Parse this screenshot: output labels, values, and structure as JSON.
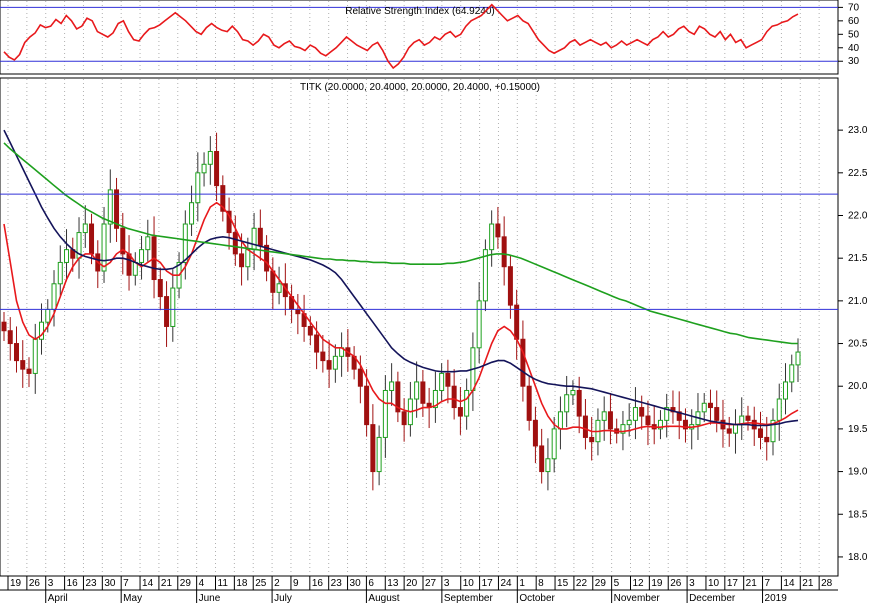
{
  "chart_data": [
    {
      "panel": "indicator",
      "type": "line",
      "title": "Relative Strength Index (64.9240)",
      "y_ticks": [
        30,
        40,
        50,
        60,
        70
      ],
      "ylim": [
        22,
        74
      ],
      "reference_lines": [
        30,
        70
      ],
      "grid": true,
      "series": [
        {
          "color": "#e8191c",
          "values": [
            37,
            33,
            31,
            35,
            44,
            48,
            51,
            57,
            55,
            56,
            61,
            58,
            64,
            60,
            54,
            56,
            62,
            60,
            52,
            50,
            48,
            51,
            58,
            60,
            52,
            46,
            45,
            50,
            54,
            55,
            57,
            60,
            63,
            66,
            63,
            60,
            56,
            52,
            50,
            55,
            58,
            55,
            53,
            52,
            56,
            52,
            46,
            45,
            42,
            45,
            50,
            48,
            42,
            40,
            43,
            45,
            41,
            40,
            38,
            42,
            40,
            36,
            34,
            37,
            40,
            44,
            48,
            45,
            42,
            40,
            38,
            42,
            44,
            38,
            30,
            25,
            28,
            33,
            40,
            44,
            46,
            42,
            44,
            48,
            46,
            50,
            52,
            48,
            50,
            56,
            60,
            62,
            64,
            68,
            72,
            68,
            64,
            60,
            62,
            64,
            60,
            58,
            52,
            46,
            42,
            38,
            36,
            38,
            40,
            44,
            46,
            42,
            44,
            46,
            44,
            42,
            44,
            40,
            42,
            45,
            42,
            44,
            46,
            44,
            42,
            46,
            48,
            52,
            48,
            50,
            54,
            56,
            52,
            50,
            56,
            54,
            50,
            48,
            52,
            46,
            50,
            44,
            46,
            40,
            42,
            44,
            46,
            52,
            56,
            57,
            59,
            60,
            63,
            65
          ]
        }
      ]
    },
    {
      "panel": "price",
      "type": "line",
      "title": "TITK (20.0000, 20.4000, 20.0000, 20.4000, +0.15000)",
      "y_ticks": [
        18.0,
        18.5,
        19.0,
        19.5,
        20.0,
        20.5,
        21.0,
        21.5,
        22.0,
        22.5,
        23.0
      ],
      "ylim": [
        17.8,
        23.4
      ],
      "reference_lines": [
        22.25,
        20.9
      ],
      "grid": true,
      "x_tick_labels": [
        "19",
        "26",
        "3",
        "16",
        "23",
        "30",
        "7",
        "14",
        "21",
        "29",
        "4",
        "11",
        "18",
        "25",
        "2",
        "9",
        "16",
        "23",
        "30",
        "6",
        "13",
        "20",
        "27",
        "3",
        "10",
        "17",
        "24",
        "1",
        "8",
        "15",
        "22",
        "29",
        "5",
        "12",
        "19",
        "26",
        "3",
        "10",
        "17",
        "21",
        "7",
        "14",
        "21",
        "28"
      ],
      "month_labels": [
        "April",
        "May",
        "June",
        "July",
        "August",
        "September",
        "October",
        "November",
        "December",
        "2019"
      ],
      "series": [
        {
          "kind": "ohlc_bars",
          "up_color": "#1ea01e",
          "down_color": "#a01010",
          "close": [
            20.65,
            20.5,
            20.3,
            20.2,
            20.15,
            20.55,
            20.75,
            20.9,
            21.2,
            21.45,
            21.6,
            21.5,
            21.8,
            21.9,
            21.55,
            21.35,
            21.9,
            22.3,
            21.85,
            21.55,
            21.3,
            21.45,
            21.6,
            21.75,
            21.25,
            21.05,
            20.7,
            21.15,
            21.45,
            21.9,
            22.15,
            22.5,
            22.6,
            22.75,
            22.35,
            22.05,
            21.8,
            21.55,
            21.4,
            21.6,
            21.85,
            21.65,
            21.35,
            21.1,
            21.2,
            21.05,
            20.9,
            20.85,
            20.7,
            20.6,
            20.4,
            20.3,
            20.2,
            20.35,
            20.45,
            20.35,
            20.2,
            20.0,
            19.55,
            19.0,
            19.4,
            19.95,
            20.05,
            19.7,
            19.55,
            19.85,
            20.05,
            19.8,
            19.75,
            19.95,
            20.15,
            20.0,
            19.75,
            19.65,
            19.95,
            20.45,
            21.0,
            21.6,
            21.9,
            21.75,
            21.4,
            20.95,
            20.55,
            20.0,
            19.6,
            19.3,
            19.0,
            19.15,
            19.5,
            19.7,
            19.9,
            19.95,
            19.65,
            19.4,
            19.35,
            19.6,
            19.7,
            19.5,
            19.45,
            19.55,
            19.6,
            19.75,
            19.65,
            19.55,
            19.5,
            19.6,
            19.75,
            19.7,
            19.6,
            19.5,
            19.55,
            19.7,
            19.8,
            19.75,
            19.6,
            19.5,
            19.45,
            19.55,
            19.65,
            19.6,
            19.5,
            19.4,
            19.35,
            19.6,
            19.85,
            20.05,
            20.25,
            20.4
          ]
        },
        {
          "name": "",
          "color": "#e8191c",
          "values": [
            21.9,
            21.45,
            21.0,
            20.75,
            20.6,
            20.55,
            20.6,
            20.7,
            20.85,
            21.05,
            21.25,
            21.4,
            21.5,
            21.55,
            21.55,
            21.45,
            21.4,
            21.45,
            21.55,
            21.6,
            21.55,
            21.45,
            21.4,
            21.45,
            21.5,
            21.45,
            21.35,
            21.3,
            21.3,
            21.4,
            21.55,
            21.75,
            21.95,
            22.1,
            22.15,
            22.1,
            22.0,
            21.85,
            21.7,
            21.6,
            21.55,
            21.5,
            21.45,
            21.35,
            21.25,
            21.15,
            21.05,
            20.95,
            20.85,
            20.75,
            20.65,
            20.55,
            20.5,
            20.45,
            20.45,
            20.4,
            20.35,
            20.25,
            20.1,
            19.95,
            19.85,
            19.8,
            19.8,
            19.75,
            19.72,
            19.7,
            19.72,
            19.75,
            19.75,
            19.77,
            19.82,
            19.85,
            19.85,
            19.82,
            19.85,
            19.95,
            20.1,
            20.3,
            20.5,
            20.65,
            20.7,
            20.65,
            20.55,
            20.4,
            20.2,
            20.0,
            19.8,
            19.65,
            19.55,
            19.5,
            19.5,
            19.52,
            19.52,
            19.5,
            19.47,
            19.47,
            19.48,
            19.48,
            19.47,
            19.47,
            19.48,
            19.5,
            19.52,
            19.53,
            19.52,
            19.52,
            19.53,
            19.53,
            19.53,
            19.52,
            19.52,
            19.53,
            19.55,
            19.57,
            19.57,
            19.56,
            19.55,
            19.55,
            19.56,
            19.57,
            19.57,
            19.56,
            19.55,
            19.56,
            19.59,
            19.63,
            19.68,
            19.72
          ]
        },
        {
          "name": "",
          "color": "#14145a",
          "values": [
            23.0,
            22.85,
            22.7,
            22.55,
            22.4,
            22.25,
            22.1,
            21.97,
            21.85,
            21.75,
            21.67,
            21.6,
            21.55,
            21.52,
            21.5,
            21.48,
            21.47,
            21.48,
            21.5,
            21.5,
            21.48,
            21.45,
            21.42,
            21.4,
            21.38,
            21.37,
            21.37,
            21.38,
            21.42,
            21.48,
            21.55,
            21.62,
            21.68,
            21.72,
            21.74,
            21.75,
            21.74,
            21.72,
            21.7,
            21.68,
            21.66,
            21.64,
            21.62,
            21.6,
            21.58,
            21.56,
            21.54,
            21.52,
            21.5,
            21.48,
            21.45,
            21.42,
            21.38,
            21.33,
            21.25,
            21.15,
            21.05,
            20.95,
            20.85,
            20.75,
            20.65,
            20.55,
            20.45,
            20.38,
            20.32,
            20.28,
            20.25,
            20.22,
            20.2,
            20.18,
            20.17,
            20.17,
            20.17,
            20.18,
            20.18,
            20.2,
            20.22,
            20.25,
            20.28,
            20.3,
            20.3,
            20.27,
            20.22,
            20.17,
            20.12,
            20.08,
            20.05,
            20.03,
            20.02,
            20.01,
            20.0,
            20.0,
            19.99,
            19.98,
            19.97,
            19.95,
            19.93,
            19.91,
            19.89,
            19.87,
            19.85,
            19.83,
            19.81,
            19.79,
            19.77,
            19.75,
            19.73,
            19.71,
            19.69,
            19.67,
            19.65,
            19.63,
            19.61,
            19.59,
            19.58,
            19.57,
            19.56,
            19.55,
            19.55,
            19.55,
            19.54,
            19.54,
            19.54,
            19.55,
            19.56,
            19.58,
            19.59,
            19.6
          ]
        },
        {
          "name": "",
          "color": "#1ea01e",
          "values": [
            22.85,
            22.78,
            22.72,
            22.66,
            22.6,
            22.54,
            22.48,
            22.42,
            22.36,
            22.3,
            22.24,
            22.19,
            22.14,
            22.09,
            22.05,
            22.01,
            21.97,
            21.94,
            21.91,
            21.88,
            21.85,
            21.83,
            21.81,
            21.79,
            21.77,
            21.76,
            21.75,
            21.74,
            21.73,
            21.72,
            21.71,
            21.7,
            21.69,
            21.68,
            21.67,
            21.66,
            21.65,
            21.64,
            21.63,
            21.62,
            21.61,
            21.6,
            21.59,
            21.58,
            21.57,
            21.56,
            21.55,
            21.54,
            21.53,
            21.52,
            21.51,
            21.5,
            21.49,
            21.49,
            21.48,
            21.48,
            21.47,
            21.47,
            21.46,
            21.46,
            21.45,
            21.45,
            21.45,
            21.44,
            21.44,
            21.44,
            21.43,
            21.43,
            21.43,
            21.43,
            21.43,
            21.43,
            21.44,
            21.44,
            21.45,
            21.46,
            21.48,
            21.5,
            21.52,
            21.54,
            21.55,
            21.55,
            21.54,
            21.52,
            21.5,
            21.47,
            21.44,
            21.41,
            21.38,
            21.35,
            21.32,
            21.29,
            21.26,
            21.23,
            21.2,
            21.17,
            21.14,
            21.11,
            21.08,
            21.05,
            21.02,
            21.0,
            20.97,
            20.94,
            20.91,
            20.88,
            20.86,
            20.84,
            20.82,
            20.8,
            20.78,
            20.76,
            20.74,
            20.72,
            20.7,
            20.68,
            20.66,
            20.64,
            20.62,
            20.61,
            20.59,
            20.57,
            20.56,
            20.55,
            20.54,
            20.53,
            20.52,
            20.51,
            20.5,
            20.5
          ]
        }
      ]
    }
  ]
}
